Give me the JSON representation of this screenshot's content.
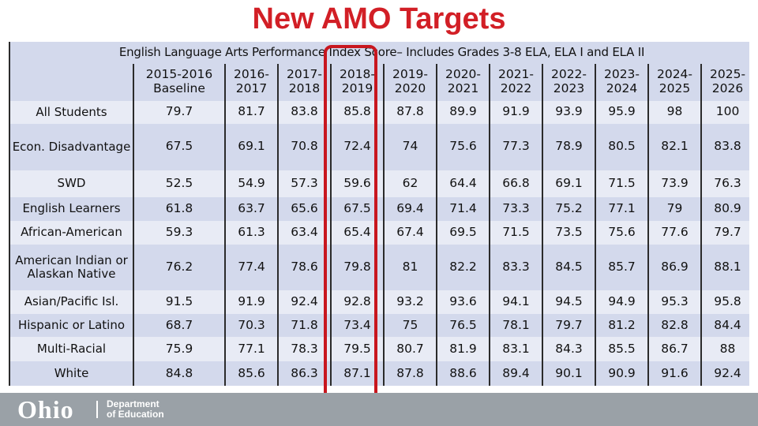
{
  "title": "New AMO Targets",
  "subtitle": "English Language Arts Performance Index Score– Includes Grades 3-8 ELA, ELA I and ELA II",
  "header_lines_top": [
    "2015-2016",
    "2016-",
    "2017-",
    "2018-",
    "2019-",
    "2020-",
    "2021-",
    "2022-",
    "2023-",
    "2024-",
    "2025-"
  ],
  "header_lines_bottom": [
    "Baseline",
    "2017",
    "2018",
    "2019",
    "2020",
    "2021",
    "2022",
    "2023",
    "2024",
    "2025",
    "2026"
  ],
  "rows": [
    {
      "label": "All Students",
      "values": [
        "79.7",
        "81.7",
        "83.8",
        "85.8",
        "87.8",
        "89.9",
        "91.9",
        "93.9",
        "95.9",
        "98",
        "100"
      ]
    },
    {
      "label": "Econ. Disadvantage",
      "values": [
        "67.5",
        "69.1",
        "70.8",
        "72.4",
        "74",
        "75.6",
        "77.3",
        "78.9",
        "80.5",
        "82.1",
        "83.8"
      ]
    },
    {
      "label": "SWD",
      "values": [
        "52.5",
        "54.9",
        "57.3",
        "59.6",
        "62",
        "64.4",
        "66.8",
        "69.1",
        "71.5",
        "73.9",
        "76.3"
      ]
    },
    {
      "label": "English Learners",
      "values": [
        "61.8",
        "63.7",
        "65.6",
        "67.5",
        "69.4",
        "71.4",
        "73.3",
        "75.2",
        "77.1",
        "79",
        "80.9"
      ]
    },
    {
      "label": "African-American",
      "values": [
        "59.3",
        "61.3",
        "63.4",
        "65.4",
        "67.4",
        "69.5",
        "71.5",
        "73.5",
        "75.6",
        "77.6",
        "79.7"
      ]
    },
    {
      "label": "American Indian or Alaskan Native",
      "values": [
        "76.2",
        "77.4",
        "78.6",
        "79.8",
        "81",
        "82.2",
        "83.3",
        "84.5",
        "85.7",
        "86.9",
        "88.1"
      ]
    },
    {
      "label": "Asian/Pacific Isl.",
      "values": [
        "91.5",
        "91.9",
        "92.4",
        "92.8",
        "93.2",
        "93.6",
        "94.1",
        "94.5",
        "94.9",
        "95.3",
        "95.8"
      ]
    },
    {
      "label": "Hispanic or Latino",
      "values": [
        "68.7",
        "70.3",
        "71.8",
        "73.4",
        "75",
        "76.5",
        "78.1",
        "79.7",
        "81.2",
        "82.8",
        "84.4"
      ]
    },
    {
      "label": "Multi-Racial",
      "values": [
        "75.9",
        "77.1",
        "78.3",
        "79.5",
        "80.7",
        "81.9",
        "83.1",
        "84.3",
        "85.5",
        "86.7",
        "88"
      ]
    },
    {
      "label": "White",
      "values": [
        "84.8",
        "85.6",
        "86.3",
        "87.1",
        "87.8",
        "88.6",
        "89.4",
        "90.1",
        "90.9",
        "91.6",
        "92.4"
      ]
    }
  ],
  "footer": {
    "logo_word": "Ohio",
    "dept_line1": "Department",
    "dept_line2": "of Education"
  },
  "colors": {
    "title": "#d21f26",
    "highlight": "#c8161e",
    "row_light": "#e8ebf5",
    "row_dark": "#d3d9ec",
    "footer": "#9aa1a7"
  }
}
